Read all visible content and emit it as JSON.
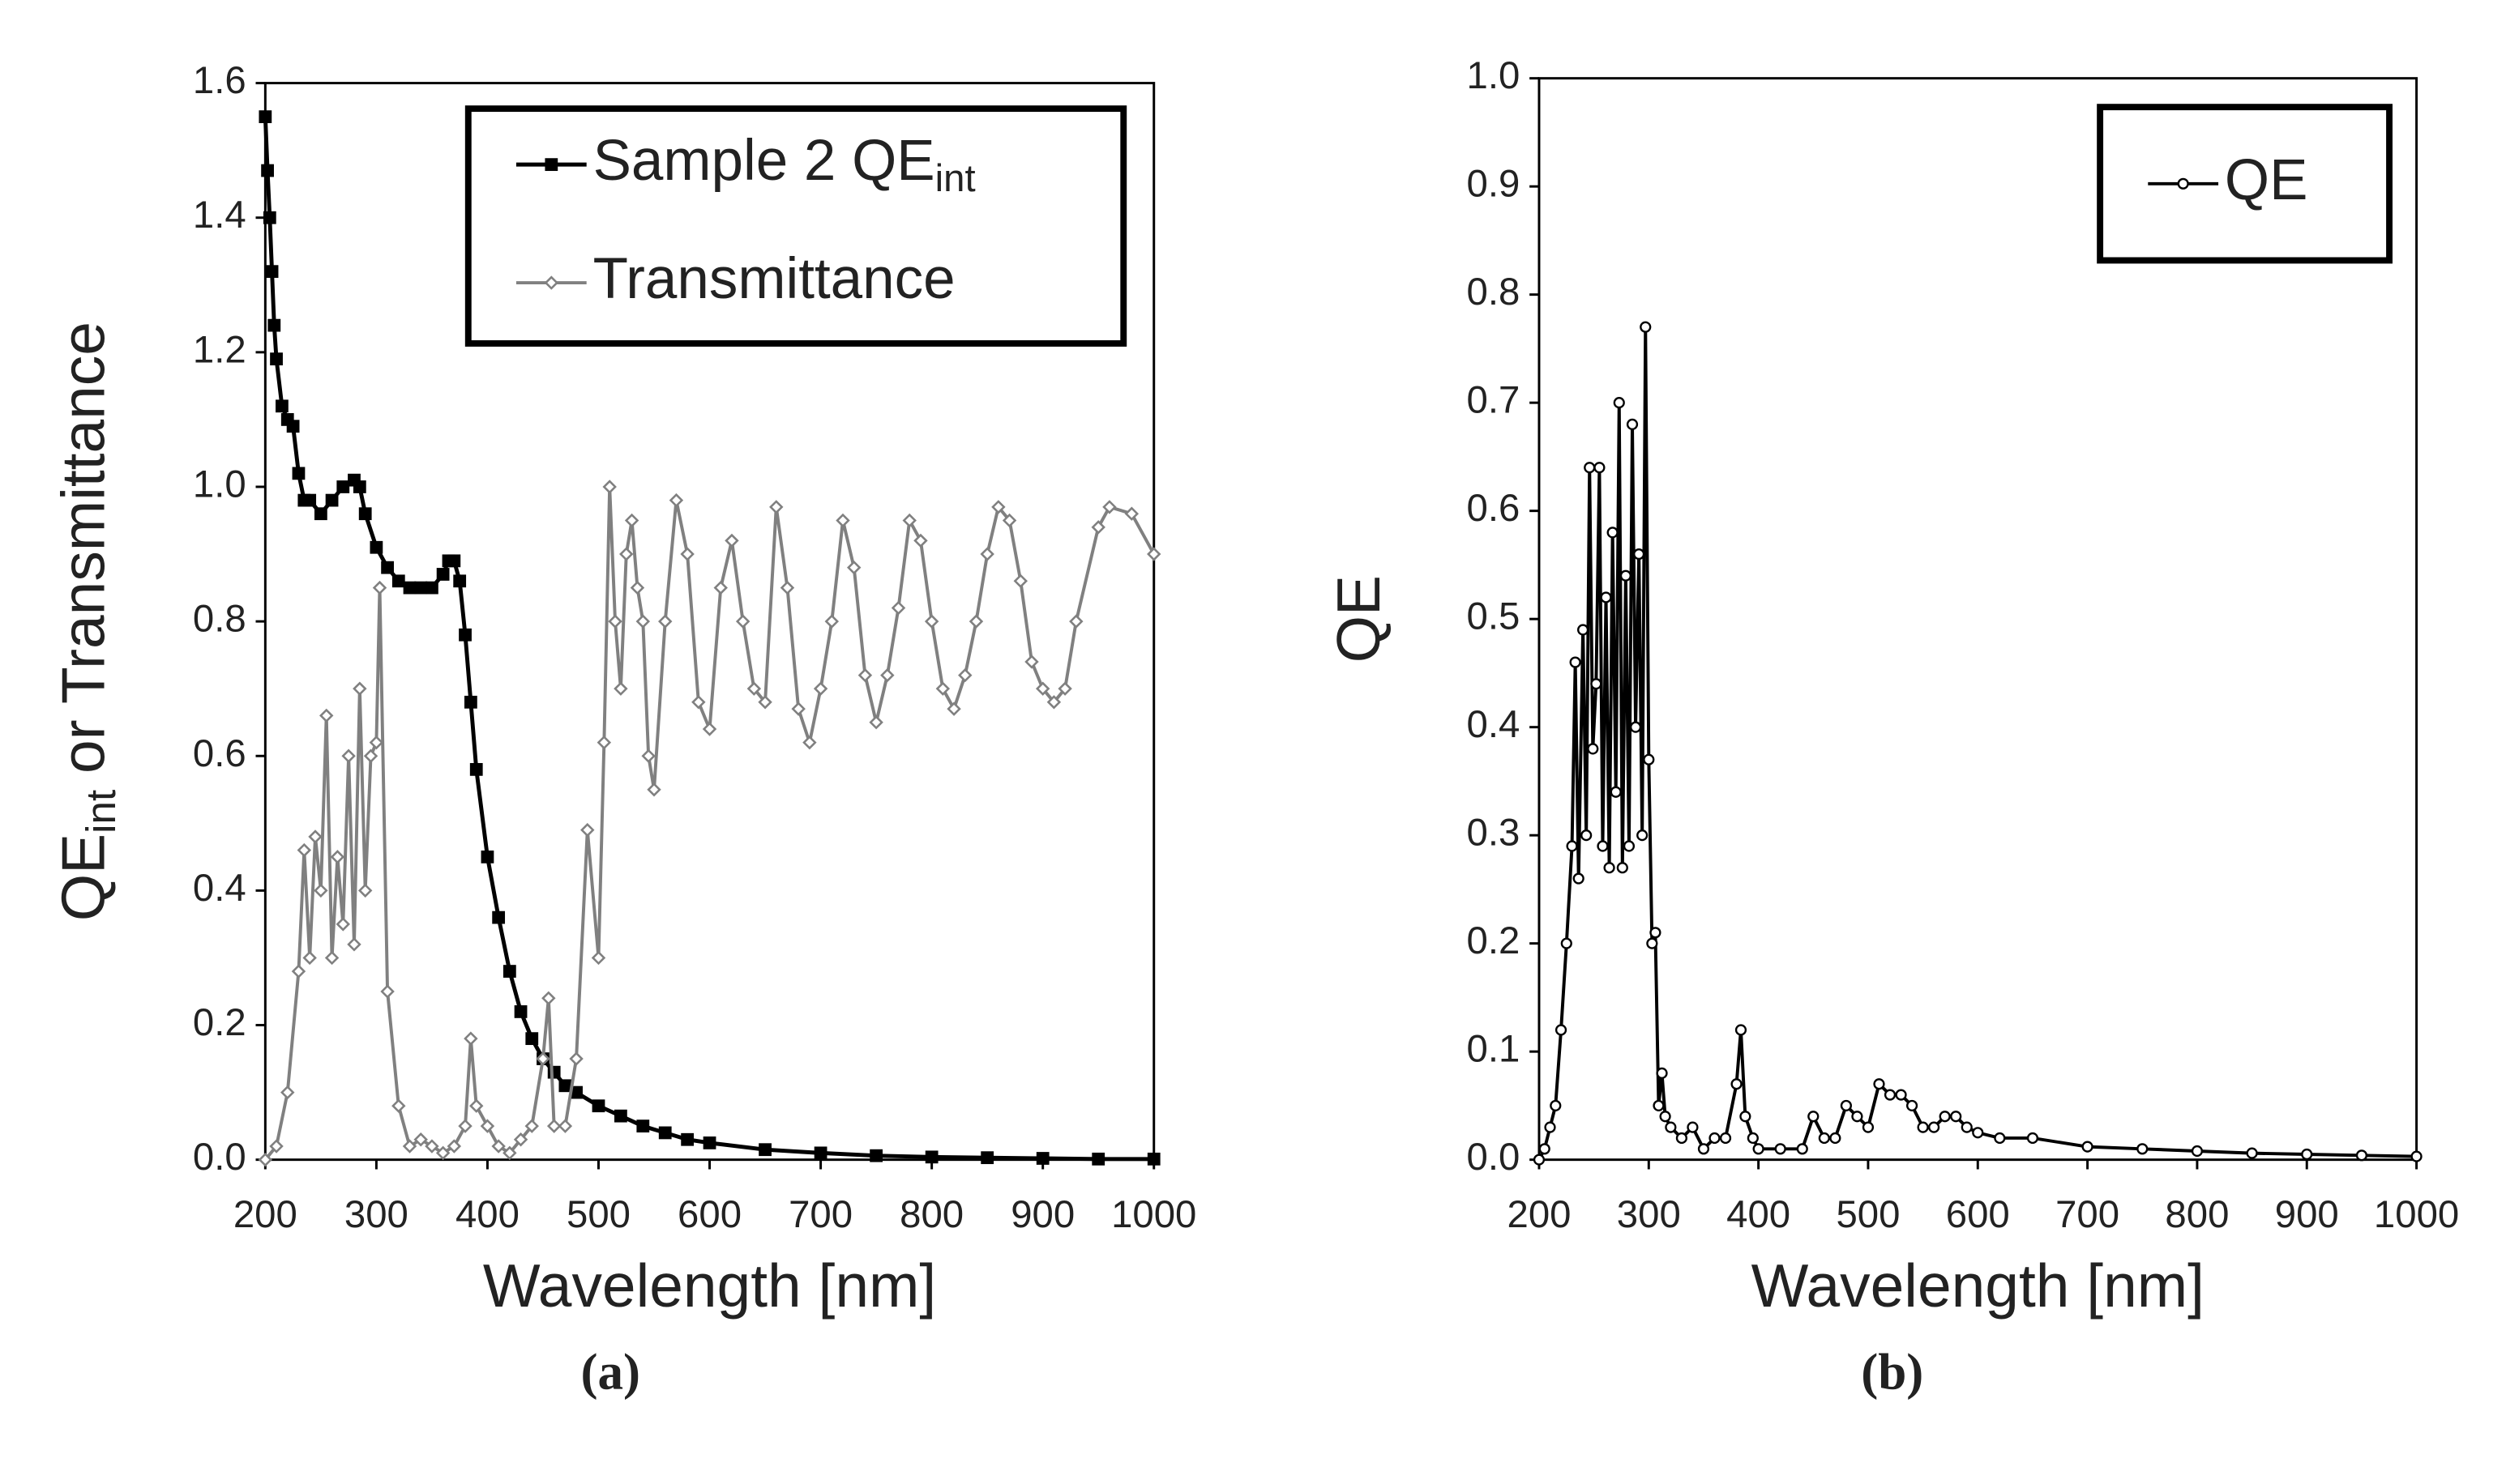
{
  "chart_data": [
    {
      "type": "line",
      "subplot_label": "(a)",
      "xlabel": "Wavelength [nm]",
      "ylabel": {
        "text": "QE",
        "subscript": "int",
        "rest": "or Transmittance"
      },
      "xlim": [
        200,
        1000
      ],
      "xticks": [
        200,
        300,
        400,
        500,
        600,
        700,
        800,
        900,
        1000
      ],
      "ylim": [
        0,
        1.6
      ],
      "yticks": [
        {
          "value": 0,
          "label": "0.0"
        },
        {
          "value": 0.2,
          "label": "0.2"
        },
        {
          "value": 0.4,
          "label": "0.4"
        },
        {
          "value": 0.6,
          "label": "0.6"
        },
        {
          "value": 0.8,
          "label": "0.8"
        },
        {
          "value": 1.0,
          "label": "1.0"
        },
        {
          "value": 1.2,
          "label": "1.2"
        },
        {
          "value": 1.4,
          "label": "1.4"
        },
        {
          "value": 1.6,
          "label": "1.6"
        }
      ],
      "legend": "upper right",
      "series": [
        {
          "name": "Sample 2 QE",
          "name_subscript": "int",
          "color": "#000000",
          "marker": "square",
          "x": [
            200,
            202,
            204,
            206,
            208,
            210,
            215,
            220,
            225,
            230,
            235,
            240,
            250,
            260,
            270,
            280,
            285,
            290,
            300,
            310,
            320,
            330,
            340,
            350,
            360,
            365,
            370,
            375,
            380,
            385,
            390,
            400,
            410,
            420,
            430,
            440,
            450,
            460,
            470,
            480,
            500,
            520,
            540,
            560,
            580,
            600,
            650,
            700,
            750,
            800,
            850,
            900,
            950,
            1000
          ],
          "values": [
            1.55,
            1.47,
            1.4,
            1.32,
            1.24,
            1.19,
            1.12,
            1.1,
            1.09,
            1.02,
            0.98,
            0.98,
            0.96,
            0.98,
            1.0,
            1.01,
            1.0,
            0.96,
            0.91,
            0.88,
            0.86,
            0.85,
            0.85,
            0.85,
            0.87,
            0.89,
            0.89,
            0.86,
            0.78,
            0.68,
            0.58,
            0.45,
            0.36,
            0.28,
            0.22,
            0.18,
            0.15,
            0.13,
            0.11,
            0.1,
            0.08,
            0.065,
            0.05,
            0.04,
            0.03,
            0.025,
            0.015,
            0.01,
            0.006,
            0.004,
            0.003,
            0.002,
            0.001,
            0.001
          ]
        },
        {
          "name": "Transmittance",
          "color": "#808080",
          "marker": "diamond",
          "x": [
            200,
            210,
            220,
            230,
            235,
            240,
            245,
            250,
            255,
            260,
            265,
            270,
            275,
            280,
            285,
            290,
            295,
            300,
            303,
            310,
            320,
            330,
            340,
            350,
            360,
            370,
            380,
            385,
            390,
            400,
            410,
            420,
            430,
            440,
            450,
            455,
            460,
            470,
            480,
            490,
            500,
            505,
            510,
            515,
            520,
            525,
            530,
            535,
            540,
            545,
            550,
            560,
            570,
            580,
            590,
            600,
            610,
            620,
            630,
            640,
            650,
            660,
            670,
            680,
            690,
            700,
            710,
            720,
            730,
            740,
            750,
            760,
            770,
            780,
            790,
            800,
            810,
            820,
            830,
            840,
            850,
            860,
            870,
            880,
            890,
            900,
            910,
            920,
            930,
            950,
            960,
            980,
            1000
          ],
          "values": [
            0,
            0.02,
            0.1,
            0.28,
            0.46,
            0.3,
            0.48,
            0.4,
            0.66,
            0.3,
            0.45,
            0.35,
            0.6,
            0.32,
            0.7,
            0.4,
            0.6,
            0.62,
            0.85,
            0.25,
            0.08,
            0.02,
            0.03,
            0.02,
            0.01,
            0.02,
            0.05,
            0.18,
            0.08,
            0.05,
            0.02,
            0.01,
            0.03,
            0.05,
            0.15,
            0.24,
            0.05,
            0.05,
            0.15,
            0.49,
            0.3,
            0.62,
            1.0,
            0.8,
            0.7,
            0.9,
            0.95,
            0.85,
            0.8,
            0.6,
            0.55,
            0.8,
            0.98,
            0.9,
            0.68,
            0.64,
            0.85,
            0.92,
            0.8,
            0.7,
            0.68,
            0.97,
            0.85,
            0.67,
            0.62,
            0.7,
            0.8,
            0.95,
            0.88,
            0.72,
            0.65,
            0.72,
            0.82,
            0.95,
            0.92,
            0.8,
            0.7,
            0.67,
            0.72,
            0.8,
            0.9,
            0.97,
            0.95,
            0.86,
            0.74,
            0.7,
            0.68,
            0.7,
            0.8,
            0.94,
            0.97,
            0.96,
            0.9
          ]
        }
      ]
    },
    {
      "type": "line",
      "subplot_label": "(b)",
      "xlabel": "Wavelength [nm]",
      "ylabel": {
        "text": "QE"
      },
      "xlim": [
        200,
        1000
      ],
      "xticks": [
        200,
        300,
        400,
        500,
        600,
        700,
        800,
        900,
        1000
      ],
      "ylim": [
        0,
        1.0
      ],
      "yticks": [
        {
          "value": 0,
          "label": "0.0"
        },
        0.1,
        0.2,
        0.3,
        0.4,
        0.5,
        0.6,
        0.7,
        0.8,
        0.9,
        {
          "value": 1.0,
          "label": "1.0"
        }
      ],
      "legend": "upper right",
      "series": [
        {
          "name": "QE",
          "color": "#000000",
          "marker": "circle",
          "x": [
            200,
            205,
            210,
            215,
            220,
            225,
            230,
            233,
            236,
            240,
            243,
            246,
            249,
            252,
            255,
            258,
            261,
            264,
            267,
            270,
            273,
            276,
            279,
            282,
            285,
            288,
            291,
            294,
            297,
            300,
            303,
            306,
            309,
            312,
            315,
            320,
            330,
            340,
            350,
            360,
            370,
            380,
            384,
            388,
            395,
            400,
            420,
            440,
            450,
            460,
            470,
            480,
            490,
            500,
            510,
            520,
            530,
            540,
            550,
            560,
            570,
            580,
            590,
            600,
            620,
            650,
            700,
            750,
            800,
            850,
            900,
            950,
            1000
          ],
          "values": [
            0,
            0.01,
            0.03,
            0.05,
            0.12,
            0.2,
            0.29,
            0.46,
            0.26,
            0.49,
            0.3,
            0.64,
            0.38,
            0.44,
            0.64,
            0.29,
            0.52,
            0.27,
            0.58,
            0.34,
            0.7,
            0.27,
            0.54,
            0.29,
            0.68,
            0.4,
            0.56,
            0.3,
            0.77,
            0.37,
            0.2,
            0.21,
            0.05,
            0.08,
            0.04,
            0.03,
            0.02,
            0.03,
            0.01,
            0.02,
            0.02,
            0.07,
            0.12,
            0.04,
            0.02,
            0.01,
            0.01,
            0.01,
            0.04,
            0.02,
            0.02,
            0.05,
            0.04,
            0.03,
            0.07,
            0.06,
            0.06,
            0.05,
            0.03,
            0.03,
            0.04,
            0.04,
            0.03,
            0.025,
            0.02,
            0.02,
            0.012,
            0.01,
            0.008,
            0.006,
            0.005,
            0.004,
            0.003
          ]
        }
      ]
    }
  ]
}
